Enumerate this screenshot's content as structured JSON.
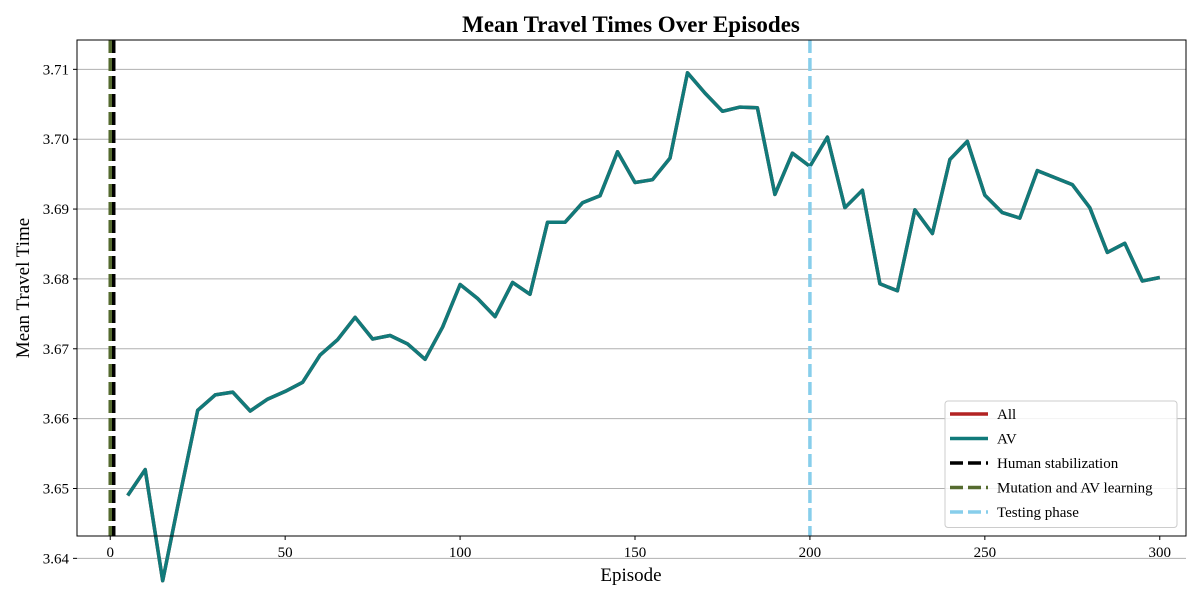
{
  "chart_data": {
    "type": "line",
    "title": "Mean Travel Times Over Episodes",
    "xlabel": "Episode",
    "ylabel": "Mean Travel Time",
    "xlim": [
      -9.5,
      307.5
    ],
    "ylim": [
      3.6432,
      3.7142
    ],
    "xticks": [
      0,
      50,
      100,
      150,
      200,
      250,
      300
    ],
    "yticks": [
      3.64,
      3.65,
      3.66,
      3.67,
      3.68,
      3.69,
      3.7,
      3.71
    ],
    "ytick_labels": [
      "3.64",
      "3.65",
      "3.66",
      "3.67",
      "3.68",
      "3.69",
      "3.70",
      "3.71"
    ],
    "grid": "horizontal",
    "legend_position": "lower-right",
    "series": [
      {
        "name": "All",
        "color": "#b22222",
        "style": "solid",
        "x": [
          5,
          10,
          15,
          20,
          25,
          30,
          35,
          40,
          45,
          50,
          55,
          60,
          65,
          70,
          75,
          80,
          85,
          90,
          95,
          100,
          105,
          110,
          115,
          120,
          125,
          130,
          135,
          140,
          145,
          150,
          155,
          160,
          165,
          170,
          175,
          180,
          185,
          190,
          195,
          200,
          205,
          210,
          215,
          220,
          225,
          230,
          235,
          240,
          245,
          250,
          255,
          260,
          265,
          270,
          275,
          280,
          285,
          290,
          295,
          300
        ],
        "values": [
          3.649,
          3.6527,
          3.6368,
          3.6492,
          3.6612,
          3.6634,
          3.6638,
          3.6611,
          3.6628,
          3.6639,
          3.6652,
          3.6691,
          3.6713,
          3.6745,
          3.6714,
          3.6719,
          3.6707,
          3.6685,
          3.6731,
          3.6792,
          3.6772,
          3.6746,
          3.6795,
          3.6778,
          3.6881,
          3.6881,
          3.6909,
          3.6919,
          3.6982,
          3.6938,
          3.6942,
          3.6973,
          3.7095,
          3.7066,
          3.704,
          3.7046,
          3.7045,
          3.6921,
          3.698,
          3.6961,
          3.7003,
          3.6902,
          3.6927,
          3.6793,
          3.6783,
          3.6899,
          3.6865,
          3.6971,
          3.6997,
          3.692,
          3.6895,
          3.6887,
          3.6955,
          3.6945,
          3.6935,
          3.6902,
          3.6838,
          3.6851,
          3.6797,
          3.6802
        ]
      },
      {
        "name": "AV",
        "color": "#117a7a",
        "style": "solid",
        "x": [
          5,
          10,
          15,
          20,
          25,
          30,
          35,
          40,
          45,
          50,
          55,
          60,
          65,
          70,
          75,
          80,
          85,
          90,
          95,
          100,
          105,
          110,
          115,
          120,
          125,
          130,
          135,
          140,
          145,
          150,
          155,
          160,
          165,
          170,
          175,
          180,
          185,
          190,
          195,
          200,
          205,
          210,
          215,
          220,
          225,
          230,
          235,
          240,
          245,
          250,
          255,
          260,
          265,
          270,
          275,
          280,
          285,
          290,
          295,
          300
        ],
        "values": [
          3.649,
          3.6527,
          3.6368,
          3.6492,
          3.6612,
          3.6634,
          3.6638,
          3.6611,
          3.6628,
          3.6639,
          3.6652,
          3.6691,
          3.6713,
          3.6745,
          3.6714,
          3.6719,
          3.6707,
          3.6685,
          3.6731,
          3.6792,
          3.6772,
          3.6746,
          3.6795,
          3.6778,
          3.6881,
          3.6881,
          3.6909,
          3.6919,
          3.6982,
          3.6938,
          3.6942,
          3.6973,
          3.7095,
          3.7066,
          3.704,
          3.7046,
          3.7045,
          3.6921,
          3.698,
          3.6961,
          3.7003,
          3.6902,
          3.6927,
          3.6793,
          3.6783,
          3.6899,
          3.6865,
          3.6971,
          3.6997,
          3.692,
          3.6895,
          3.6887,
          3.6955,
          3.6945,
          3.6935,
          3.6902,
          3.6838,
          3.6851,
          3.6797,
          3.6802
        ]
      }
    ],
    "vlines": [
      {
        "name": "Human stabilization",
        "x": 1,
        "color": "#000000",
        "style": "dashed"
      },
      {
        "name": "Mutation and AV learning",
        "x": 0,
        "color": "#556b2f",
        "style": "dashed"
      },
      {
        "name": "Testing phase",
        "x": 200,
        "color": "#87ceeb",
        "style": "dashed"
      }
    ]
  }
}
